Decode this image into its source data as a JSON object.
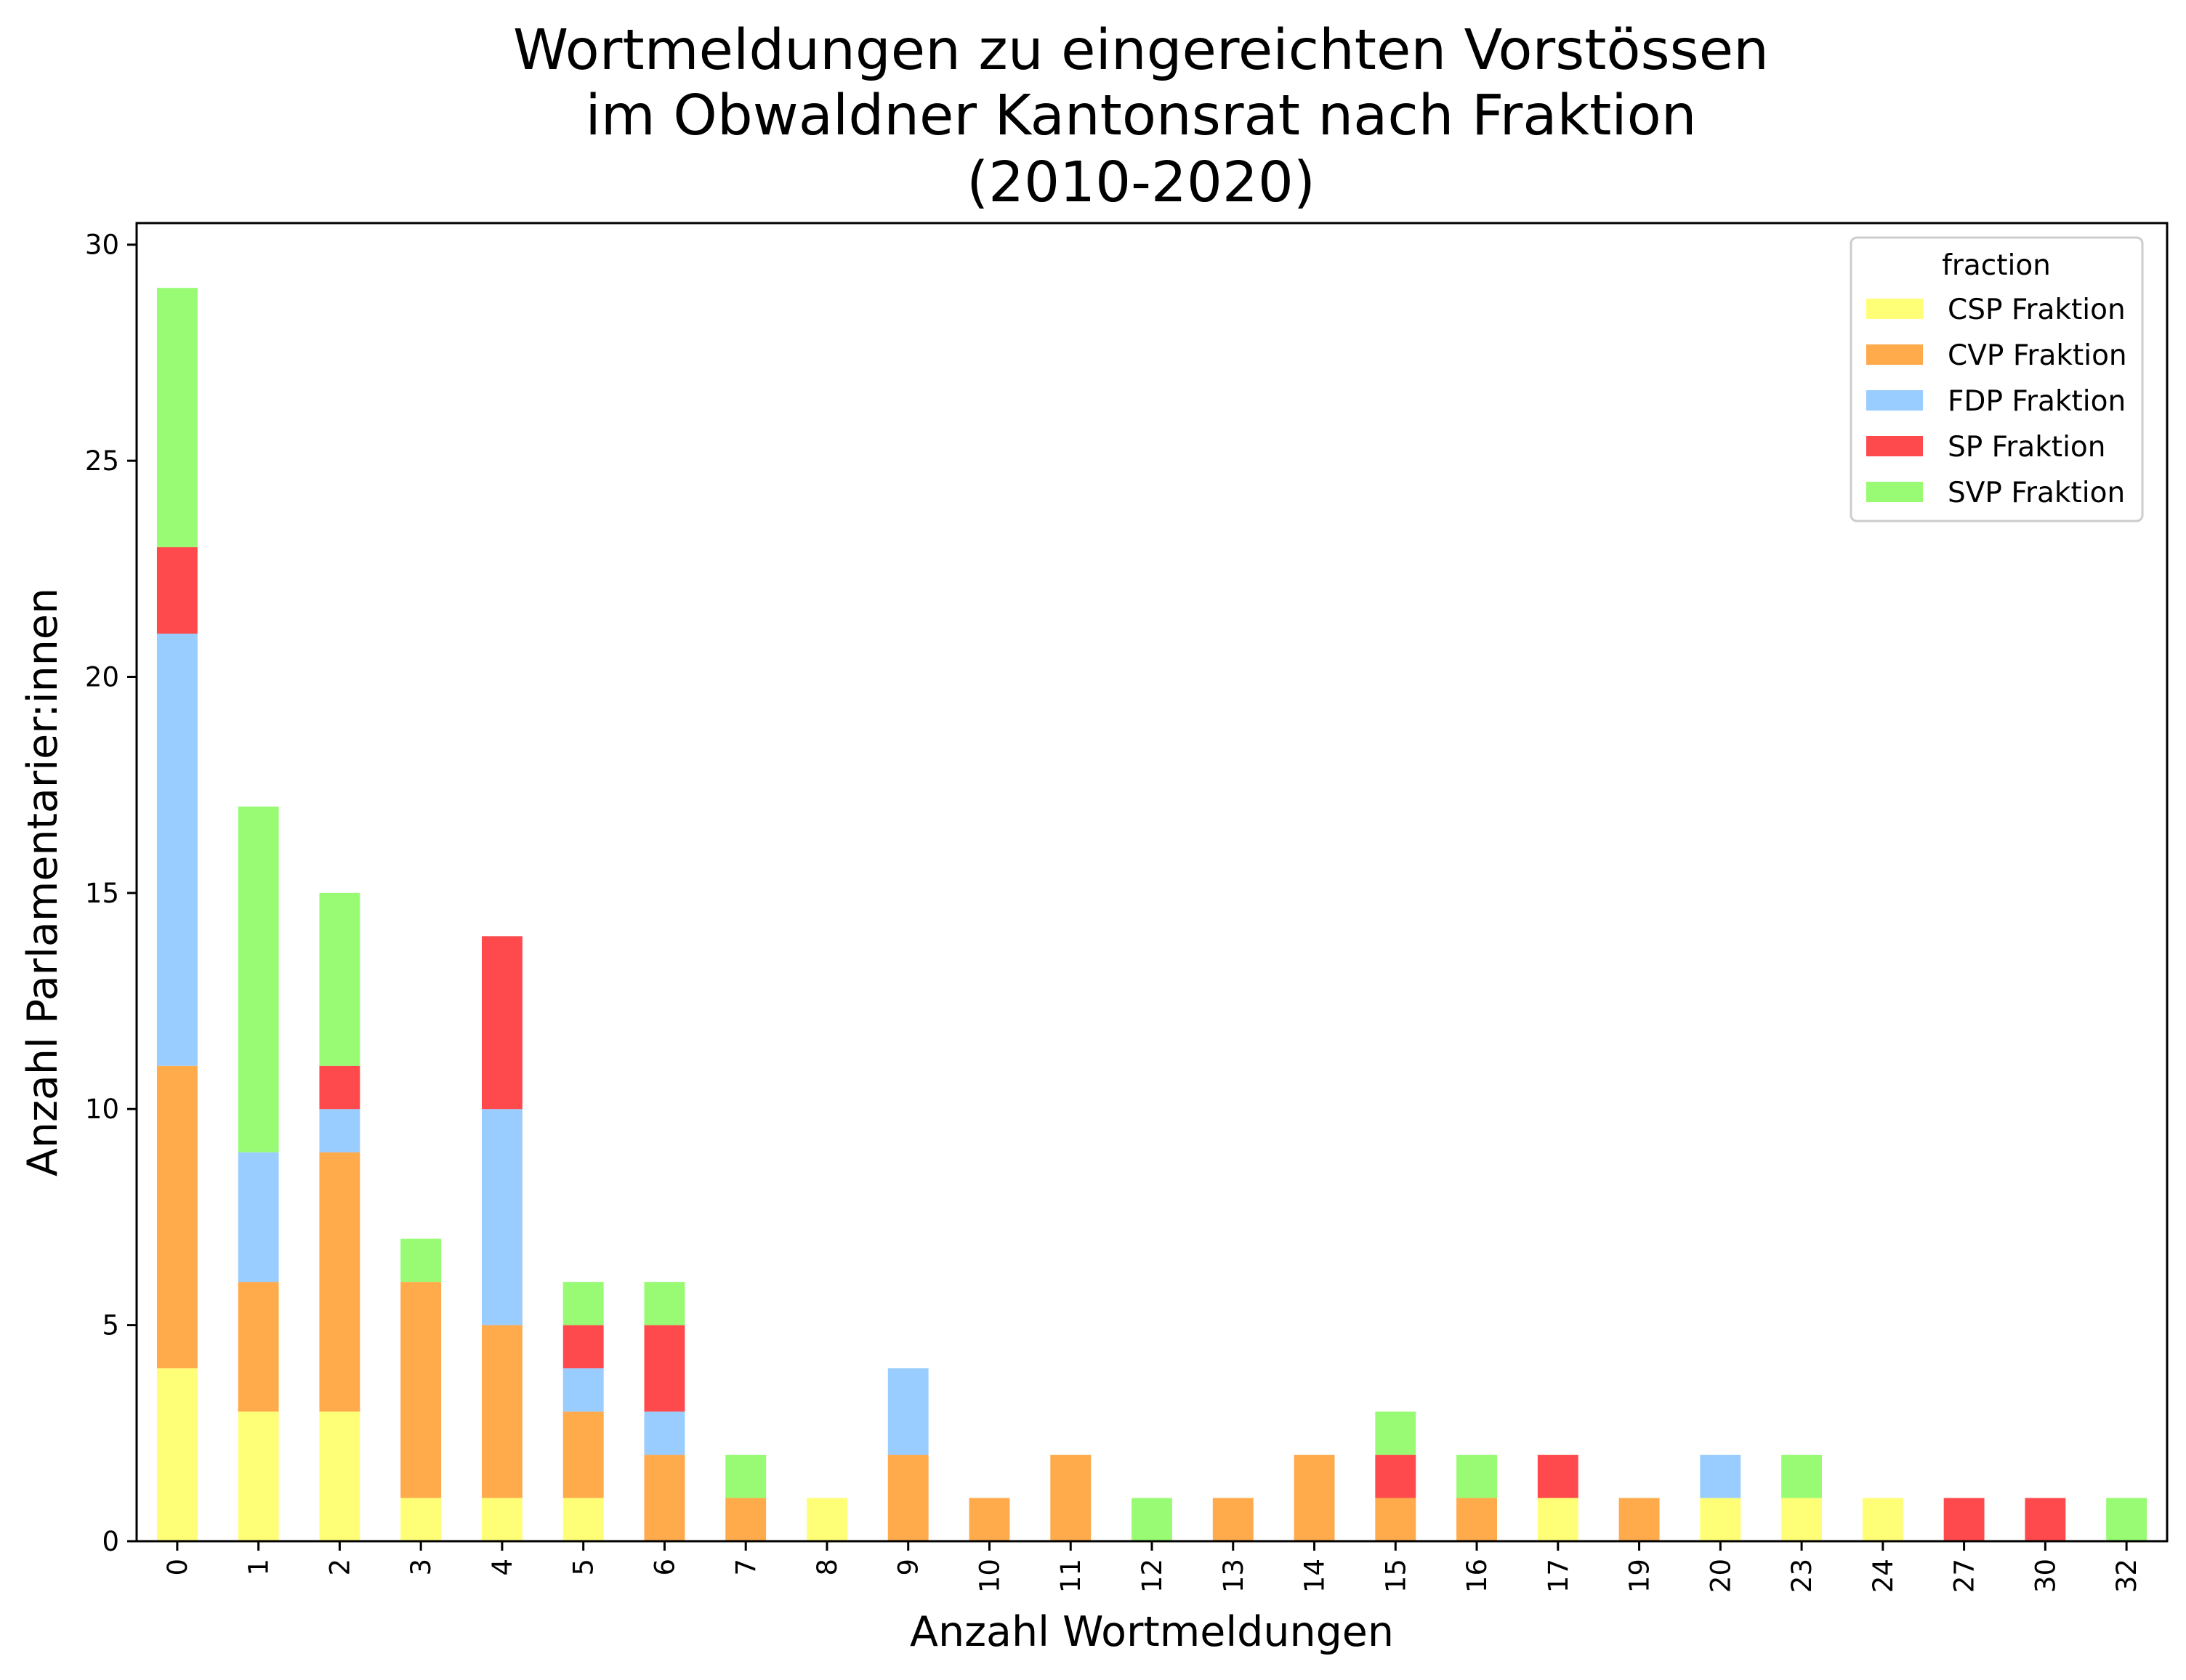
{
  "chart_data": {
    "type": "bar",
    "stacked": true,
    "title_lines": [
      "Wortmeldungen zu eingereichten Vorstössen",
      "im Obwaldner Kantonsrat nach Fraktion",
      "(2010-2020)"
    ],
    "xlabel": "Anzahl Wortmeldungen",
    "ylabel": "Anzahl Parlamentarier:innen",
    "ylim": [
      0,
      30.5
    ],
    "yticks": [
      "0",
      "5",
      "10",
      "15",
      "20",
      "25",
      "30"
    ],
    "grid": false,
    "legend": {
      "title": "fraction",
      "placement": "top-right"
    },
    "categories": [
      "0",
      "1",
      "2",
      "3",
      "4",
      "5",
      "6",
      "7",
      "8",
      "9",
      "10",
      "11",
      "12",
      "13",
      "14",
      "15",
      "16",
      "17",
      "19",
      "20",
      "23",
      "24",
      "27",
      "30",
      "32"
    ],
    "series": [
      {
        "name": "CSP Fraktion",
        "color": "#ffff77",
        "values": [
          4,
          3,
          3,
          1,
          1,
          1,
          0,
          0,
          1,
          0,
          0,
          0,
          0,
          0,
          0,
          0,
          0,
          1,
          0,
          1,
          1,
          1,
          0,
          0,
          0
        ]
      },
      {
        "name": "CVP Fraktion",
        "color": "#ffaa4b",
        "values": [
          7,
          3,
          6,
          5,
          4,
          2,
          2,
          1,
          0,
          2,
          1,
          2,
          0,
          1,
          2,
          1,
          1,
          0,
          1,
          0,
          0,
          0,
          0,
          0,
          0
        ]
      },
      {
        "name": "FDP Fraktion",
        "color": "#99ccff",
        "values": [
          10,
          3,
          1,
          0,
          5,
          1,
          1,
          0,
          0,
          2,
          0,
          0,
          0,
          0,
          0,
          0,
          0,
          0,
          0,
          1,
          0,
          0,
          0,
          0,
          0
        ]
      },
      {
        "name": "SP Fraktion",
        "color": "#ff4a4d",
        "values": [
          2,
          0,
          1,
          0,
          4,
          1,
          2,
          0,
          0,
          0,
          0,
          0,
          0,
          0,
          0,
          1,
          0,
          1,
          0,
          0,
          0,
          0,
          1,
          1,
          0
        ]
      },
      {
        "name": "SVP Fraktion",
        "color": "#98fb73",
        "values": [
          6,
          8,
          4,
          1,
          0,
          1,
          1,
          1,
          0,
          0,
          0,
          0,
          1,
          0,
          0,
          1,
          1,
          0,
          0,
          0,
          1,
          0,
          0,
          0,
          1
        ]
      }
    ]
  }
}
